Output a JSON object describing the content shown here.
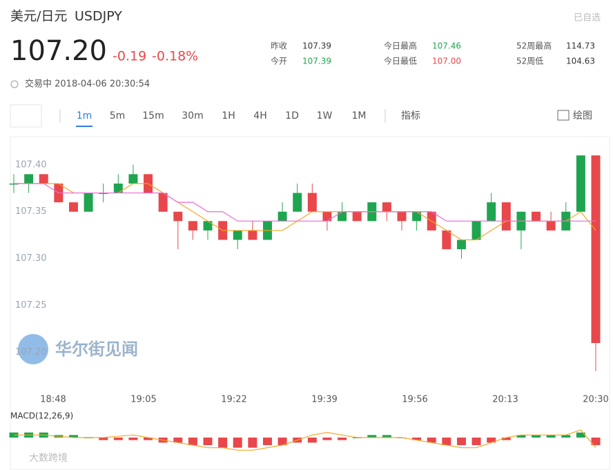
{
  "header": {
    "name": "美元/日元",
    "symbol": "USDJPY",
    "watch": "已自选",
    "price": "107.20",
    "change": "-0.19",
    "change_pct": "-0.18%",
    "status": "交易中 2018-04-06 20:30:54",
    "stats": [
      {
        "label": "昨收",
        "value": "107.39"
      },
      {
        "label": "今开",
        "value": "107.39"
      },
      {
        "label": "今日最高",
        "value": "107.46"
      },
      {
        "label": "今日最低",
        "value": "107.00"
      },
      {
        "label": "52周最高",
        "value": "114.73"
      },
      {
        "label": "52周低",
        "value": "104.63"
      }
    ]
  },
  "toolbar": {
    "tabs": [
      "1m",
      "5m",
      "15m",
      "30m",
      "1H",
      "4H",
      "1D",
      "1W",
      "1M"
    ],
    "indicator": "指标",
    "draw": "绘图"
  },
  "watermark": "华尔街见闻",
  "footer": "大数跨境",
  "chart_data": {
    "type": "candlestick",
    "up_color": "#1fa550",
    "down_color": "#e8474b",
    "x_labels": [
      "18:48",
      "19:05",
      "19:22",
      "19:39",
      "19:56",
      "20:13",
      "20:30"
    ],
    "ylim": [
      107.16,
      107.43
    ],
    "yticks": [
      {
        "value": 107.4,
        "label": "107.40"
      },
      107.35,
      {
        "value": 107.3,
        "label": "107.30"
      },
      107.25,
      {
        "value": 107.2,
        "label": "107.20"
      }
    ],
    "open": [
      107.38,
      107.38,
      107.39,
      107.38,
      107.36,
      107.35,
      107.37,
      107.37,
      107.38,
      107.39,
      107.37,
      107.35,
      107.34,
      107.33,
      107.34,
      107.32,
      107.33,
      107.32,
      107.34,
      107.35,
      107.37,
      107.35,
      107.34,
      107.35,
      107.34,
      107.36,
      107.35,
      107.34,
      107.35,
      107.33,
      107.31,
      107.32,
      107.34,
      107.36,
      107.33,
      107.35,
      107.34,
      107.33,
      107.35,
      107.41
    ],
    "high": [
      107.39,
      107.39,
      107.39,
      107.38,
      107.36,
      107.37,
      107.38,
      107.39,
      107.4,
      107.39,
      107.37,
      107.35,
      107.34,
      107.34,
      107.34,
      107.33,
      107.34,
      107.34,
      107.36,
      107.38,
      107.38,
      107.35,
      107.36,
      107.35,
      107.36,
      107.36,
      107.35,
      107.35,
      107.35,
      107.33,
      107.32,
      107.34,
      107.37,
      107.36,
      107.35,
      107.35,
      107.35,
      107.36,
      107.41,
      107.41
    ],
    "low": [
      107.37,
      107.37,
      107.38,
      107.36,
      107.35,
      107.35,
      107.36,
      107.37,
      107.38,
      107.37,
      107.35,
      107.31,
      107.32,
      107.32,
      107.32,
      107.31,
      107.32,
      107.32,
      107.34,
      107.35,
      107.35,
      107.33,
      107.34,
      107.34,
      107.34,
      107.34,
      107.33,
      107.33,
      107.33,
      107.31,
      107.3,
      107.32,
      107.34,
      107.33,
      107.31,
      107.34,
      107.33,
      107.33,
      107.35,
      107.18
    ],
    "close": [
      107.38,
      107.39,
      107.38,
      107.36,
      107.35,
      107.37,
      107.37,
      107.38,
      107.39,
      107.37,
      107.35,
      107.34,
      107.33,
      107.34,
      107.32,
      107.33,
      107.32,
      107.34,
      107.35,
      107.37,
      107.35,
      107.34,
      107.35,
      107.34,
      107.36,
      107.35,
      107.34,
      107.35,
      107.33,
      107.31,
      107.32,
      107.34,
      107.36,
      107.33,
      107.35,
      107.34,
      107.33,
      107.35,
      107.41,
      107.21
    ],
    "lines": [
      {
        "color": "#f5a623",
        "values": [
          107.38,
          107.38,
          107.38,
          107.38,
          107.37,
          107.37,
          107.37,
          107.37,
          107.38,
          107.38,
          107.37,
          107.36,
          107.35,
          107.34,
          107.33,
          107.33,
          107.33,
          107.33,
          107.33,
          107.34,
          107.35,
          107.35,
          107.35,
          107.35,
          107.35,
          107.35,
          107.35,
          107.35,
          107.34,
          107.33,
          107.32,
          107.32,
          107.33,
          107.34,
          107.34,
          107.34,
          107.34,
          107.34,
          107.35,
          107.33
        ]
      },
      {
        "color": "#e86ad8",
        "values": [
          107.38,
          107.38,
          107.38,
          107.37,
          107.37,
          107.37,
          107.37,
          107.37,
          107.37,
          107.37,
          107.37,
          107.36,
          107.36,
          107.35,
          107.35,
          107.34,
          107.34,
          107.34,
          107.34,
          107.34,
          107.34,
          107.34,
          107.35,
          107.35,
          107.35,
          107.35,
          107.35,
          107.35,
          107.35,
          107.34,
          107.34,
          107.34,
          107.34,
          107.34,
          107.34,
          107.34,
          107.34,
          107.34,
          107.34,
          107.34
        ]
      }
    ],
    "macd_label": "MACD(12,26,9)",
    "macd_lim": [
      -6,
      6
    ],
    "macd_hist": [
      2,
      2,
      2,
      1,
      1,
      0,
      -1,
      -1,
      -1,
      -1,
      -2,
      -2,
      -3,
      -3,
      -4,
      -4,
      -4,
      -3,
      -3,
      -2,
      -2,
      -1,
      -1,
      0,
      1,
      1,
      0,
      -1,
      -2,
      -3,
      -3,
      -3,
      -2,
      -1,
      1,
      1,
      1,
      1,
      2,
      -3
    ],
    "macd_line": {
      "color": "#f5a623",
      "values": [
        1,
        1,
        1,
        0.5,
        0,
        0,
        0,
        0.5,
        1,
        0,
        -1,
        -2,
        -3,
        -4,
        -4,
        -5,
        -5,
        -4,
        -3,
        -1,
        1,
        2,
        1,
        0,
        0,
        0,
        0,
        -1,
        -2,
        -3,
        -4,
        -4,
        -2,
        0,
        1,
        1,
        1,
        1,
        3,
        -4
      ]
    }
  }
}
